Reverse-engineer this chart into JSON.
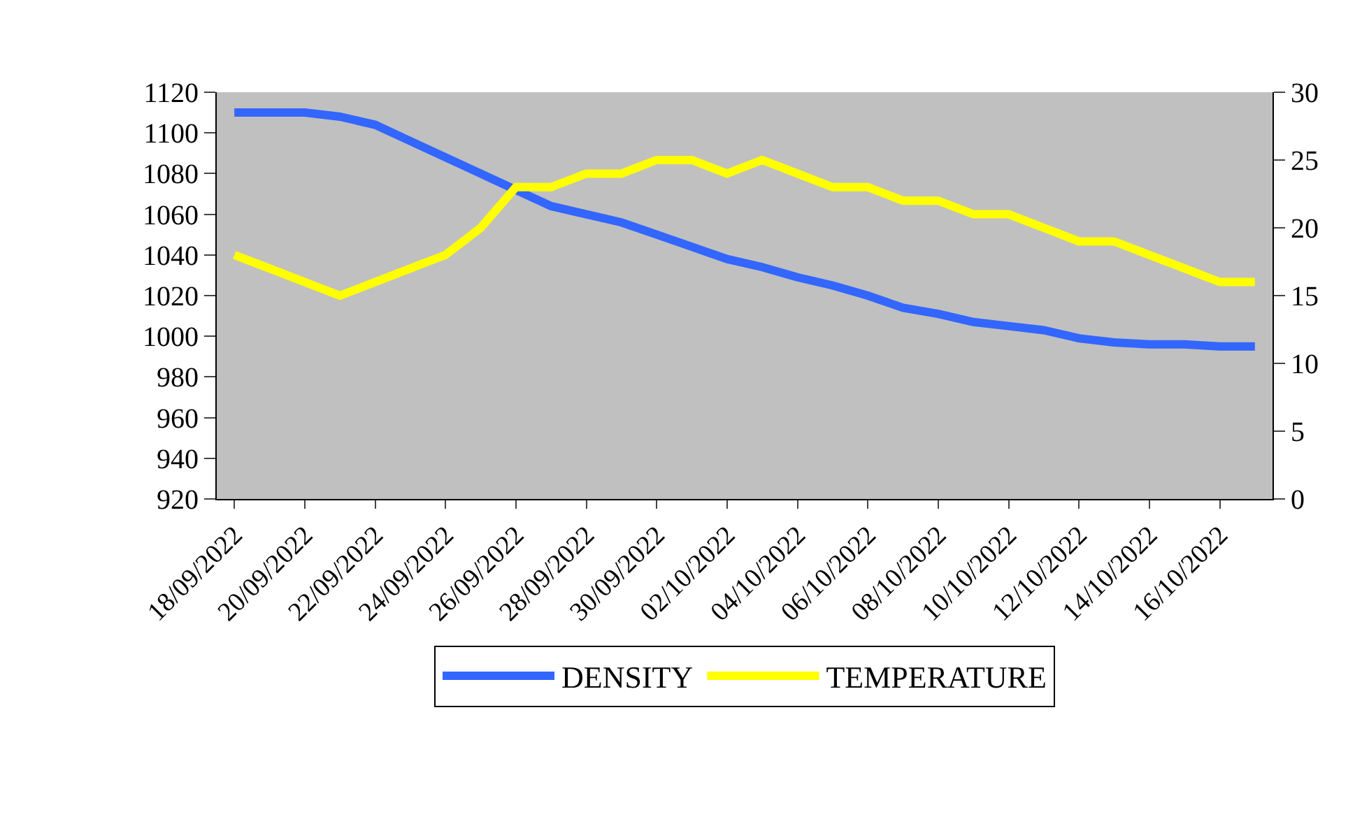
{
  "chart_data": {
    "type": "line",
    "categories": [
      "18/09/2022",
      null,
      "20/09/2022",
      null,
      "22/09/2022",
      null,
      "24/09/2022",
      null,
      "26/09/2022",
      null,
      "28/09/2022",
      null,
      "30/09/2022",
      null,
      "02/10/2022",
      null,
      "04/10/2022",
      null,
      "06/10/2022",
      null,
      "08/10/2022",
      null,
      "10/10/2022",
      null,
      "12/10/2022",
      null,
      "14/10/2022",
      null,
      "16/10/2022",
      null
    ],
    "series": [
      {
        "name": "DENSITY",
        "color": "#3366ff",
        "values": [
          1110,
          1110,
          1110,
          1108,
          1104,
          1096,
          1088,
          1080,
          1072,
          1064,
          1060,
          1056,
          1050,
          1044,
          1038,
          1034,
          1029,
          1025,
          1020,
          1014,
          1011,
          1007,
          1005,
          1003,
          999,
          997,
          996,
          996,
          995,
          995
        ]
      },
      {
        "name": "TEMPERATURE",
        "color": "#ffff00",
        "axis": "y2",
        "values": [
          18,
          17,
          16,
          15,
          16,
          17,
          18,
          20,
          23,
          23,
          24,
          24,
          25,
          25,
          24,
          25,
          24,
          23,
          23,
          22,
          22,
          21,
          21,
          20,
          19,
          19,
          18,
          17,
          16,
          16
        ]
      }
    ],
    "ylim": [
      920,
      1120
    ],
    "yticks": [
      920,
      940,
      960,
      980,
      1000,
      1020,
      1040,
      1060,
      1080,
      1100,
      1120
    ],
    "y2lim": [
      0,
      30
    ],
    "y2ticks": [
      0,
      5,
      10,
      15,
      20,
      25,
      30
    ],
    "grid": false,
    "legend": "bottom",
    "line_style": "solid",
    "marker": "none"
  }
}
